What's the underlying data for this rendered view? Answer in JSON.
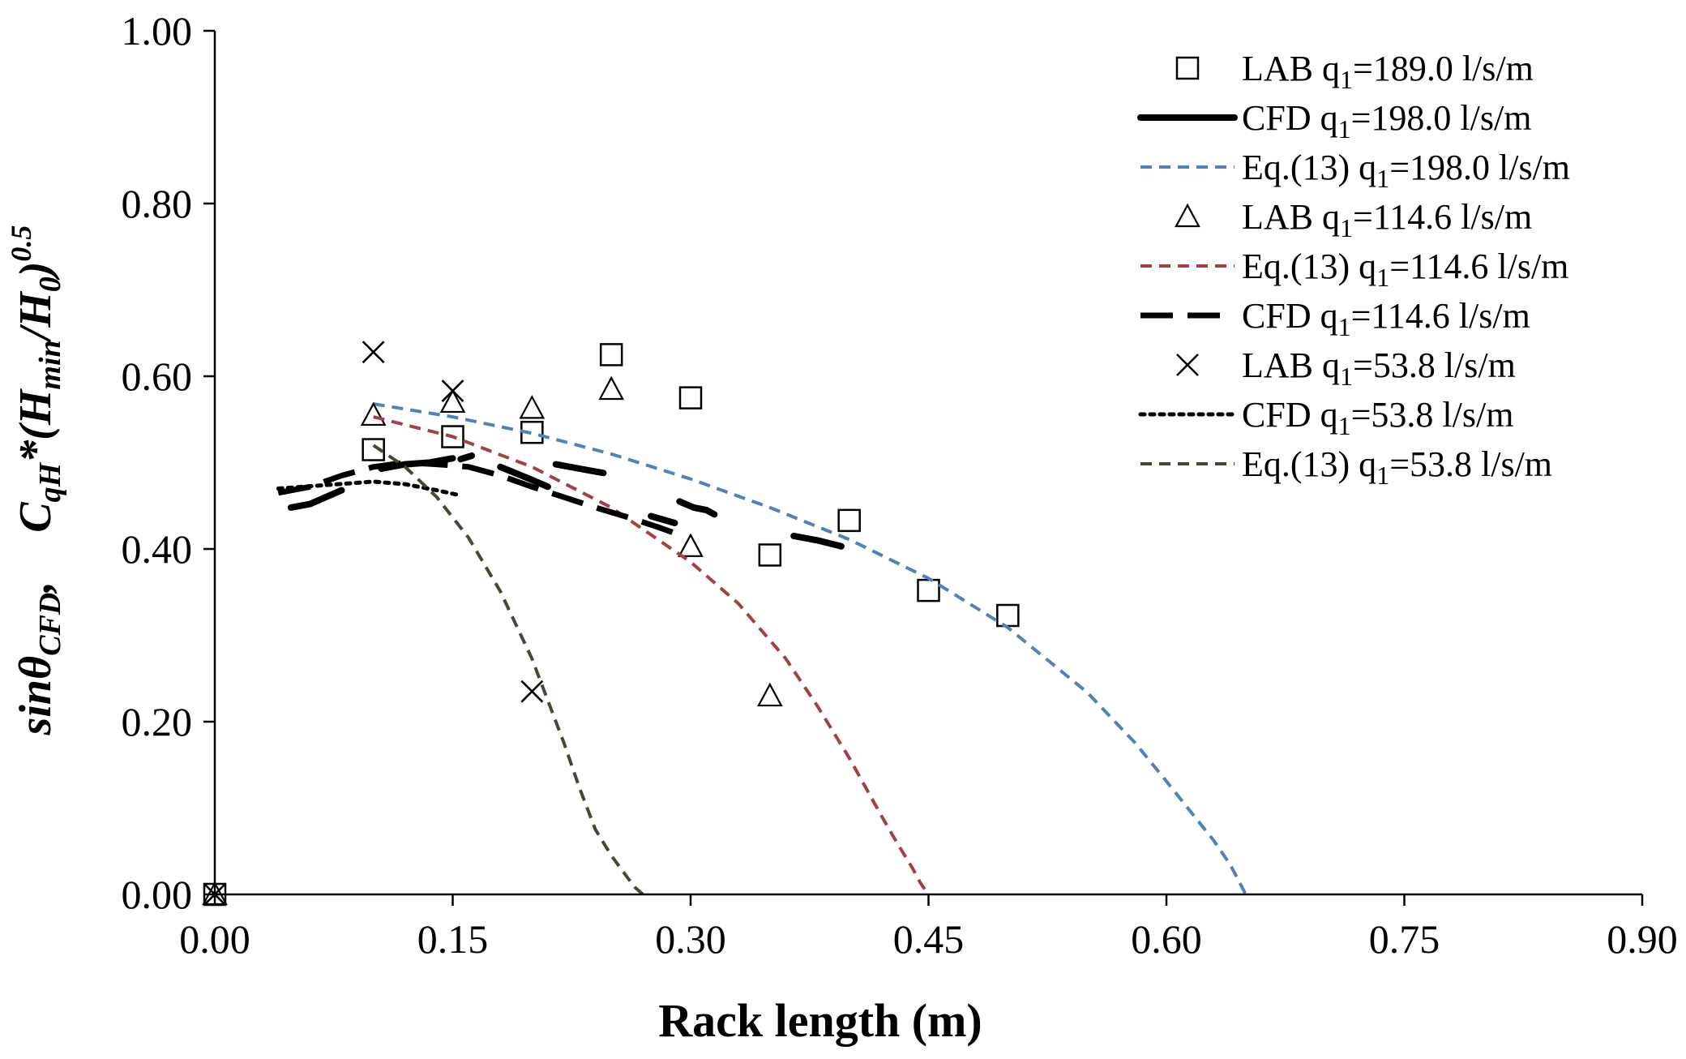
{
  "chart_data": {
    "type": "scatter",
    "xlabel": "Rack length (m)",
    "ylabel": {
      "part1": "sinθ",
      "part1_sub": "CFD",
      "part2": ",",
      "part3": "C",
      "part3_sub": "qH",
      "part4": "*(H",
      "part4_sub": "min",
      "part5": "/H",
      "part5_sub": "0",
      "part6": ")",
      "part6_sup": "0.5"
    },
    "xlim": [
      0,
      0.9
    ],
    "ylim": [
      0,
      1.0
    ],
    "xticks": [
      "0.00",
      "0.15",
      "0.30",
      "0.45",
      "0.60",
      "0.75",
      "0.90"
    ],
    "yticks": [
      "0.00",
      "0.20",
      "0.40",
      "0.60",
      "0.80",
      "1.00"
    ],
    "colors": {
      "blue": "#4F81BD",
      "red": "#A5403F",
      "olive": "#4A4632",
      "black": "#000000"
    },
    "series": [
      {
        "name": "LAB q₁=189.0 l/s/m",
        "kind": "marker",
        "marker": "square",
        "color": "#000000",
        "x": [
          0,
          0.1,
          0.15,
          0.2,
          0.25,
          0.3,
          0.35,
          0.4,
          0.45,
          0.5
        ],
        "y": [
          0,
          0.515,
          0.53,
          0.535,
          0.625,
          0.575,
          0.393,
          0.433,
          0.352,
          0.323
        ]
      },
      {
        "name": "CFD q₁=198.0 l/s/m",
        "kind": "line",
        "dash": "solid",
        "width": 8,
        "color": "#000000",
        "segments": [
          {
            "x": [
              0.048,
              0.06,
              0.07,
              0.08
            ],
            "y": [
              0.448,
              0.452,
              0.46,
              0.468
            ]
          },
          {
            "x": [
              0.105,
              0.12,
              0.135,
              0.15
            ],
            "y": [
              0.493,
              0.498,
              0.5,
              0.505
            ]
          },
          {
            "x": [
              0.155,
              0.162
            ],
            "y": [
              0.504,
              0.508
            ]
          },
          {
            "x": [
              0.18,
              0.2,
              0.21
            ],
            "y": [
              0.495,
              0.48,
              0.472
            ]
          },
          {
            "x": [
              0.215,
              0.23,
              0.245
            ],
            "y": [
              0.498,
              0.493,
              0.488
            ]
          },
          {
            "x": [
              0.275,
              0.29
            ],
            "y": [
              0.438,
              0.43
            ]
          },
          {
            "x": [
              0.293,
              0.302,
              0.31,
              0.315
            ],
            "y": [
              0.455,
              0.448,
              0.445,
              0.44
            ]
          },
          {
            "x": [
              0.365,
              0.38,
              0.395
            ],
            "y": [
              0.415,
              0.41,
              0.403
            ]
          }
        ]
      },
      {
        "name": "Eq.(13) q₁=198.0 l/s/m",
        "kind": "curve",
        "dash": "short",
        "color": "#4F81BD",
        "x": [
          0.1,
          0.15,
          0.2,
          0.25,
          0.3,
          0.35,
          0.4,
          0.45,
          0.5,
          0.55,
          0.58,
          0.6,
          0.62,
          0.63,
          0.64,
          0.645,
          0.65
        ],
        "y": [
          0.568,
          0.553,
          0.534,
          0.51,
          0.481,
          0.448,
          0.411,
          0.366,
          0.309,
          0.234,
          0.176,
          0.131,
          0.085,
          0.062,
          0.035,
          0.018,
          0.0
        ]
      },
      {
        "name": "LAB q₁=114.6 l/s/m",
        "kind": "marker",
        "marker": "triangle",
        "color": "#000000",
        "x": [
          0,
          0.1,
          0.15,
          0.2,
          0.25,
          0.3,
          0.35
        ],
        "y": [
          0,
          0.555,
          0.57,
          0.563,
          0.585,
          0.403,
          0.23
        ]
      },
      {
        "name": "Eq.(13) q₁=114.6 l/s/m",
        "kind": "curve",
        "dash": "short",
        "color": "#A5403F",
        "x": [
          0.1,
          0.15,
          0.2,
          0.25,
          0.3,
          0.33,
          0.36,
          0.38,
          0.4,
          0.42,
          0.43,
          0.44,
          0.445,
          0.45
        ],
        "y": [
          0.553,
          0.53,
          0.495,
          0.448,
          0.385,
          0.337,
          0.273,
          0.218,
          0.158,
          0.092,
          0.06,
          0.03,
          0.013,
          0.0
        ]
      },
      {
        "name": "CFD q₁=114.6 l/s/m",
        "kind": "line",
        "dash": "long",
        "width": 7,
        "color": "#000000",
        "x": [
          0.04,
          0.06,
          0.08,
          0.1,
          0.12,
          0.14,
          0.16,
          0.18,
          0.2,
          0.22,
          0.24,
          0.26,
          0.28,
          0.295
        ],
        "y": [
          0.465,
          0.472,
          0.485,
          0.495,
          0.5,
          0.498,
          0.495,
          0.485,
          0.472,
          0.46,
          0.448,
          0.437,
          0.425,
          0.415
        ]
      },
      {
        "name": "LAB q₁=53.8 l/s/m",
        "kind": "marker",
        "marker": "x",
        "color": "#000000",
        "x": [
          0,
          0.1,
          0.15,
          0.2
        ],
        "y": [
          0,
          0.628,
          0.583,
          0.235
        ]
      },
      {
        "name": "CFD q₁=53.8 l/s/m",
        "kind": "line",
        "dash": "dotted",
        "width": 5,
        "color": "#000000",
        "x": [
          0.04,
          0.055,
          0.07,
          0.085,
          0.1,
          0.12,
          0.14,
          0.155
        ],
        "y": [
          0.47,
          0.472,
          0.474,
          0.476,
          0.478,
          0.475,
          0.468,
          0.462
        ]
      },
      {
        "name": "Eq.(13) q₁=53.8 l/s/m",
        "kind": "curve",
        "dash": "short",
        "color": "#4A4632",
        "x": [
          0.1,
          0.12,
          0.14,
          0.16,
          0.18,
          0.2,
          0.22,
          0.23,
          0.24,
          0.25,
          0.26,
          0.265,
          0.27
        ],
        "y": [
          0.52,
          0.495,
          0.46,
          0.413,
          0.351,
          0.273,
          0.176,
          0.123,
          0.075,
          0.045,
          0.02,
          0.008,
          0.0
        ]
      }
    ],
    "legend": {
      "position": "top-right",
      "entries": [
        {
          "label": "LAB q",
          "sub": "1",
          "rest": "=189.0 l/s/m",
          "series": 0
        },
        {
          "label": "CFD q",
          "sub": "1",
          "rest": "=198.0 l/s/m",
          "series": 1
        },
        {
          "label": "Eq.(13) q",
          "sub": "1",
          "rest": "=198.0 l/s/m",
          "series": 2
        },
        {
          "label": "LAB q",
          "sub": "1",
          "rest": "=114.6 l/s/m",
          "series": 3
        },
        {
          "label": "Eq.(13) q",
          "sub": "1",
          "rest": "=114.6 l/s/m",
          "series": 4
        },
        {
          "label": "CFD q",
          "sub": "1",
          "rest": "=114.6 l/s/m",
          "series": 5
        },
        {
          "label": "LAB q",
          "sub": "1",
          "rest": "=53.8 l/s/m",
          "series": 6
        },
        {
          "label": "CFD q",
          "sub": "1",
          "rest": "=53.8 l/s/m",
          "series": 7
        },
        {
          "label": "Eq.(13) q",
          "sub": "1",
          "rest": "=53.8 l/s/m",
          "series": 8
        }
      ]
    }
  }
}
